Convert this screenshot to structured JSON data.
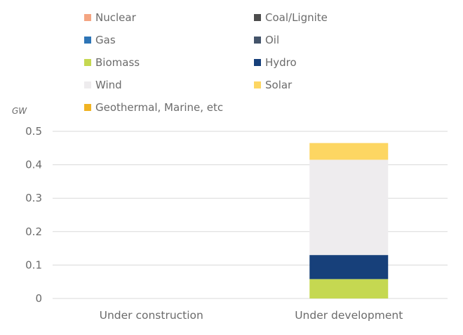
{
  "chart_data": {
    "type": "bar",
    "stacked": true,
    "ylabel": "GW",
    "ylim": [
      0,
      0.5
    ],
    "yticks": [
      "0",
      "0.1",
      "0.2",
      "0.3",
      "0.4",
      "0.5"
    ],
    "ytick_values": [
      0,
      0.1,
      0.2,
      0.3,
      0.4,
      0.5
    ],
    "grid": true,
    "legend_position": "top",
    "categories": [
      "Under construction",
      "Under development"
    ],
    "series": [
      {
        "name": "Nuclear",
        "color": "#f4a582",
        "values": [
          0,
          0
        ]
      },
      {
        "name": "Coal/Lignite",
        "color": "#4d4d4d",
        "values": [
          0,
          0
        ]
      },
      {
        "name": "Gas",
        "color": "#2e75b6",
        "values": [
          0,
          0
        ]
      },
      {
        "name": "Oil",
        "color": "#44546a",
        "values": [
          0,
          0
        ]
      },
      {
        "name": "Biomass",
        "color": "#c5d851",
        "values": [
          0,
          0.058
        ]
      },
      {
        "name": "Hydro",
        "color": "#17407a",
        "values": [
          0,
          0.072
        ]
      },
      {
        "name": "Wind",
        "color": "#eeecee",
        "values": [
          0,
          0.285
        ]
      },
      {
        "name": "Solar",
        "color": "#fdd662",
        "values": [
          0,
          0.05
        ]
      },
      {
        "name": "Geothermal, Marine, etc",
        "color": "#f0b323",
        "values": [
          0,
          0
        ]
      }
    ]
  }
}
